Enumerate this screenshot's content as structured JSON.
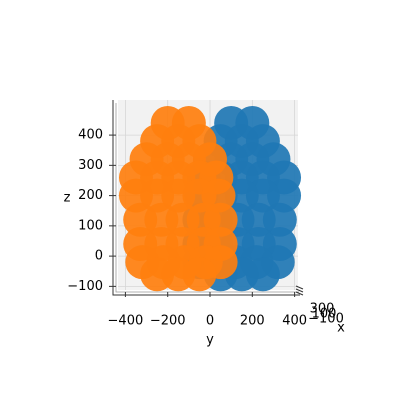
{
  "chart_data": {
    "type": "scatter3d",
    "xlabel": "x",
    "ylabel": "y",
    "zlabel": "z",
    "xticks": [
      {
        "value": 300,
        "label": "300"
      },
      {
        "value": 100,
        "label": "100"
      },
      {
        "value": -100,
        "label": "−100"
      }
    ],
    "ylim": [
      -435,
      416
    ],
    "yticks": [
      {
        "value": -400,
        "label": "−400"
      },
      {
        "value": -200,
        "label": "−200"
      },
      0,
      200,
      400
    ],
    "zlim": [
      -112,
      516
    ],
    "zticks": [
      {
        "value": -100,
        "label": "−100"
      },
      0,
      100,
      200,
      300,
      400
    ],
    "grid": true,
    "series": [
      {
        "color": "#1f77b4",
        "y": [
          200,
          100,
          250,
          150,
          50,
          300,
          200,
          100,
          0,
          350,
          250,
          150,
          50,
          -30,
          350,
          250,
          150,
          50,
          -40,
          330,
          230,
          130,
          30,
          -50,
          330,
          230,
          130,
          30,
          -50,
          320,
          220,
          120,
          20,
          -50,
          250,
          150,
          50
        ],
        "z": [
          440,
          440,
          380,
          380,
          380,
          320,
          320,
          320,
          320,
          260,
          260,
          260,
          260,
          260,
          200,
          200,
          200,
          200,
          200,
          120,
          120,
          120,
          120,
          120,
          40,
          40,
          40,
          40,
          40,
          -20,
          -20,
          -20,
          -20,
          -20,
          -60,
          -60,
          -60
        ]
      },
      {
        "color": "#ff7f0e",
        "y": [
          -200,
          -100,
          -250,
          -150,
          -50,
          -300,
          -200,
          -100,
          0,
          -350,
          -250,
          -150,
          -50,
          30,
          -350,
          -250,
          -150,
          -50,
          40,
          -330,
          -230,
          -130,
          -30,
          50,
          -330,
          -230,
          -130,
          -30,
          50,
          -320,
          -220,
          -120,
          -20,
          50,
          -250,
          -150,
          -50
        ],
        "z": [
          440,
          440,
          380,
          380,
          380,
          320,
          320,
          320,
          320,
          260,
          260,
          260,
          260,
          260,
          200,
          200,
          200,
          200,
          200,
          120,
          120,
          120,
          120,
          120,
          40,
          40,
          40,
          40,
          40,
          -20,
          -20,
          -20,
          -20,
          -20,
          -60,
          -60,
          -60
        ]
      }
    ]
  }
}
